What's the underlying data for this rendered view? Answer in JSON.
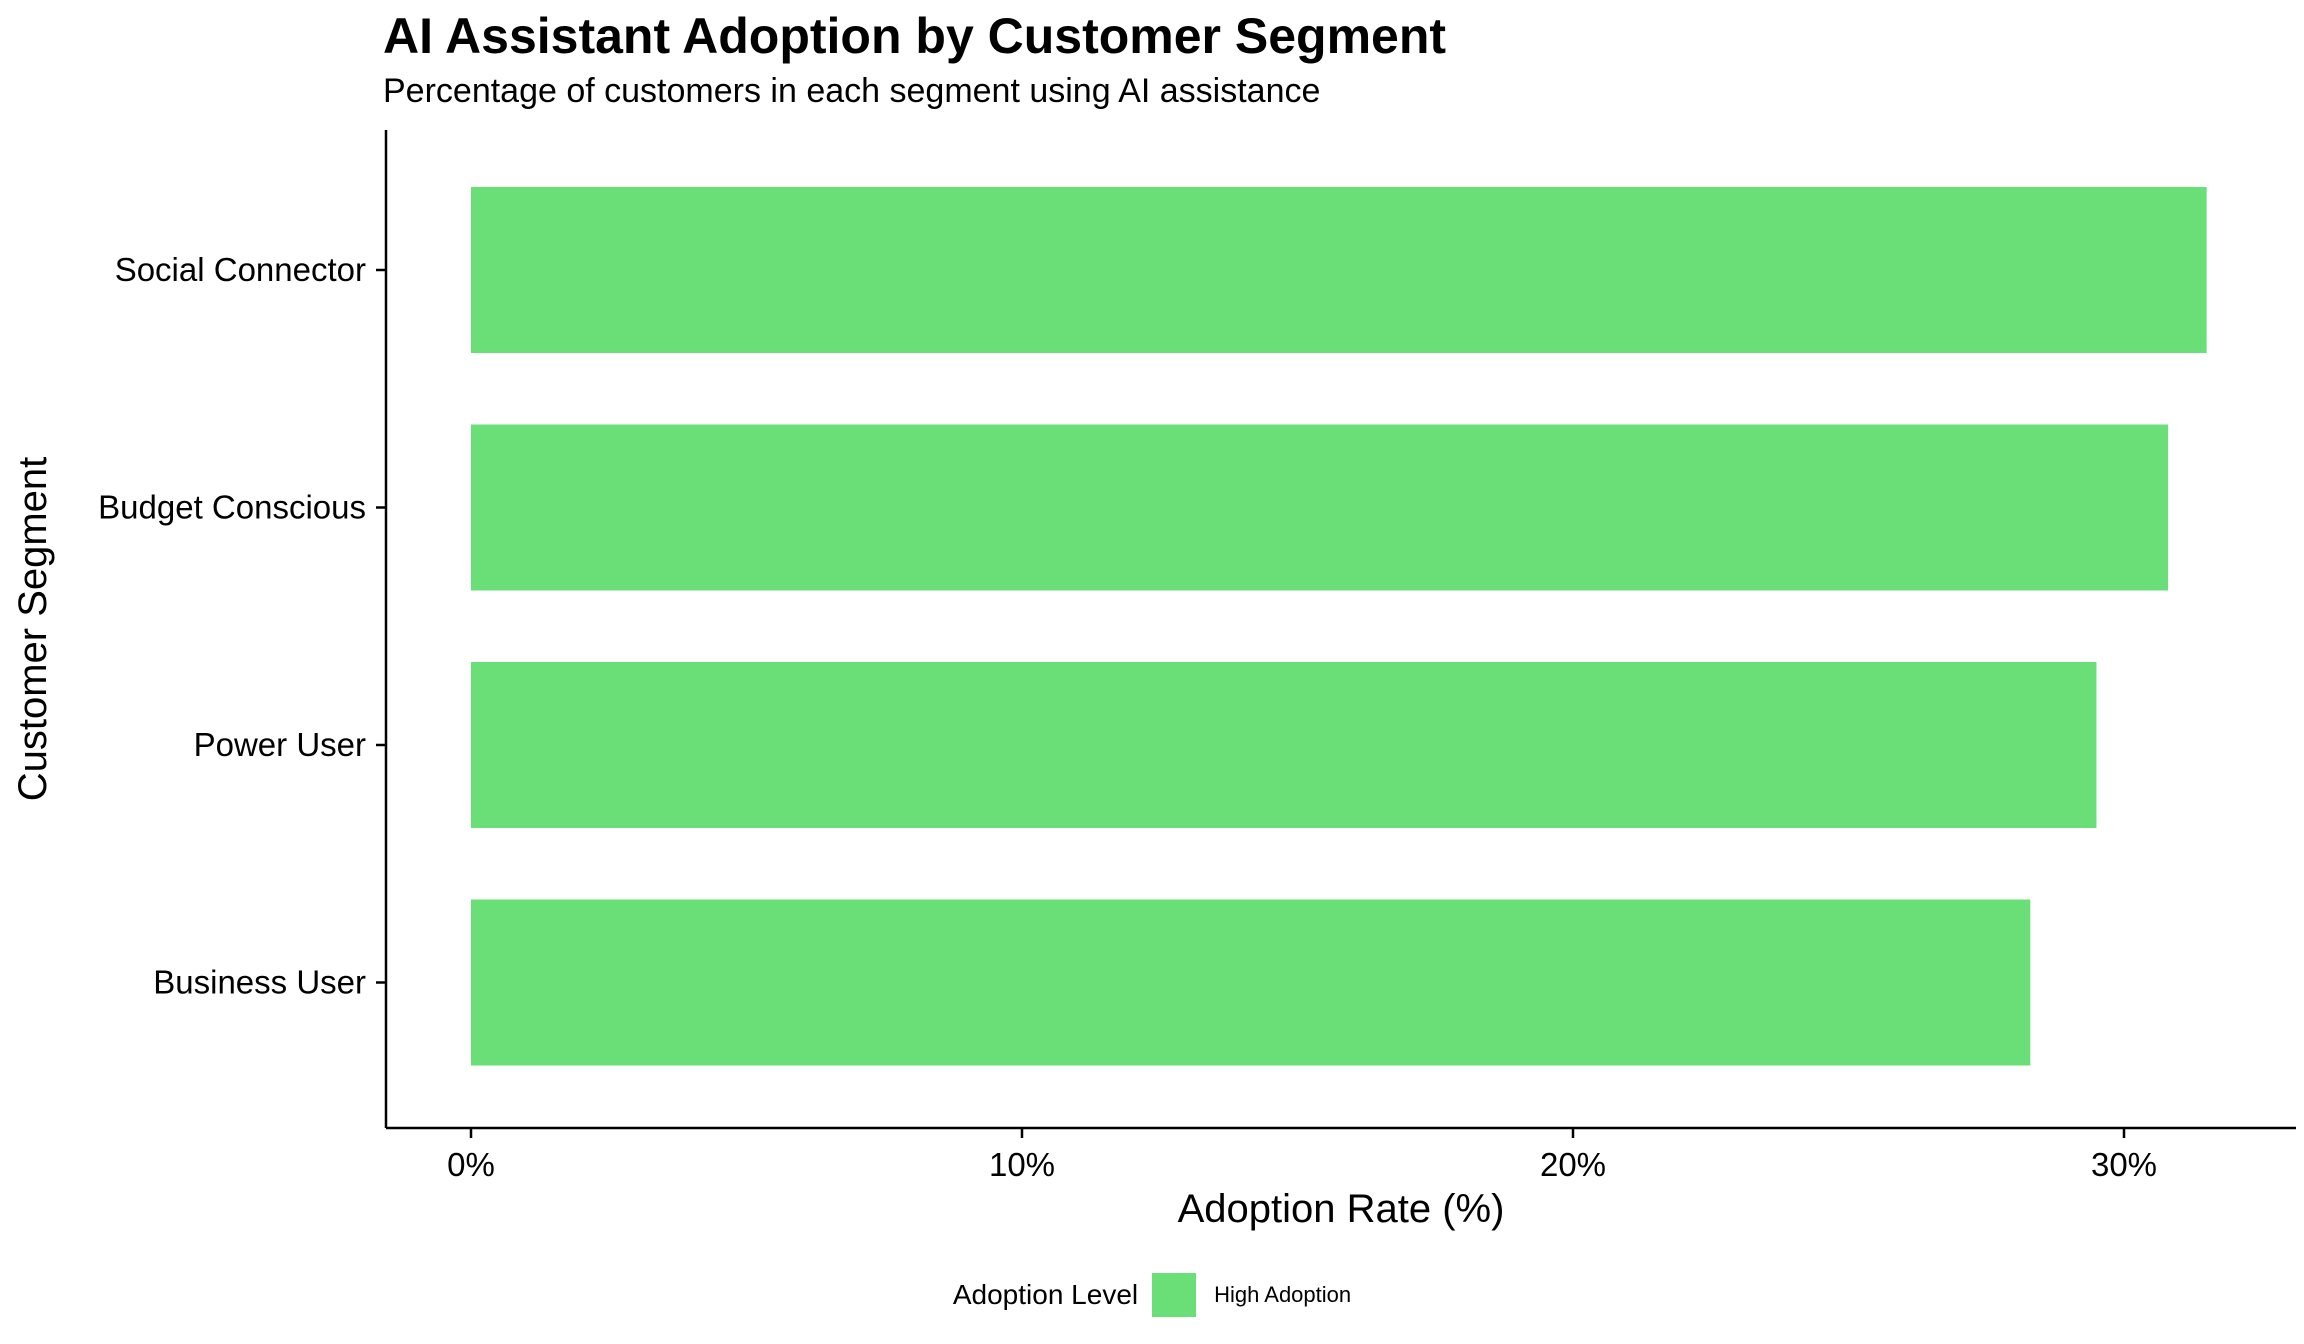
{
  "chart_data": {
    "type": "bar",
    "orientation": "horizontal",
    "title": "AI Assistant Adoption by Customer Segment",
    "subtitle": "Percentage of customers in each segment using AI assistance",
    "xlabel": "Adoption Rate (%)",
    "ylabel": "Customer Segment",
    "categories": [
      "Social Connector",
      "Budget Conscious",
      "Power User",
      "Business User"
    ],
    "values": [
      31.5,
      30.8,
      29.5,
      28.3
    ],
    "xlim": [
      0,
      33
    ],
    "xticks": [
      0,
      10,
      20,
      30
    ],
    "xtick_labels": [
      "0%",
      "10%",
      "20%",
      "30%"
    ],
    "bar_color": "#6ADE77",
    "grid": false,
    "legend": {
      "title": "Adoption Level",
      "entries": [
        {
          "label": "High Adoption",
          "color": "#6ADE77"
        }
      ],
      "position": "bottom"
    }
  }
}
